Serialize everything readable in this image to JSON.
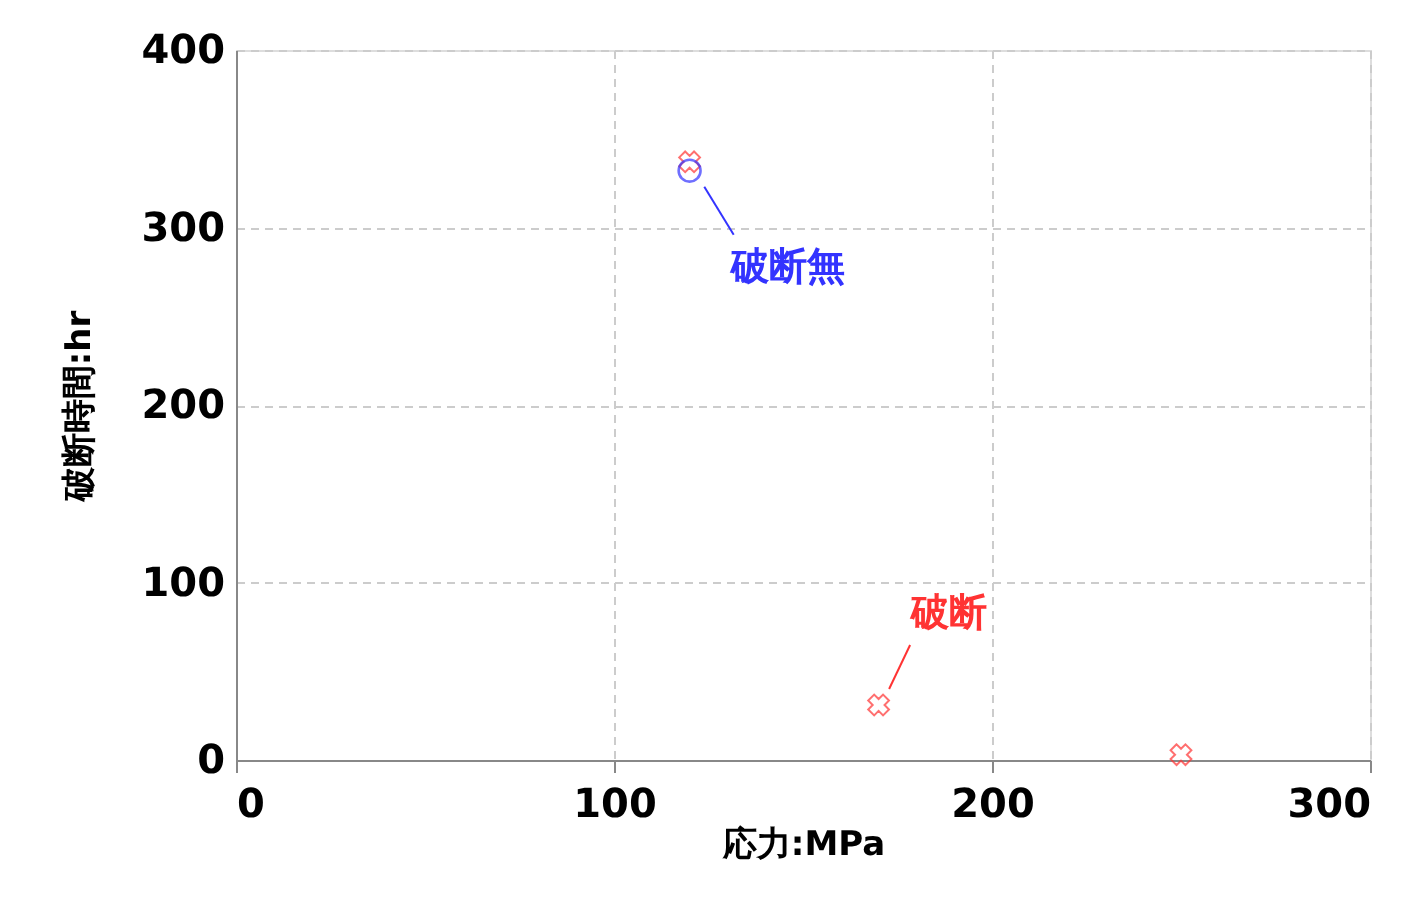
{
  "chart_data": {
    "type": "scatter",
    "xlabel": "応力:MPa",
    "ylabel": "破断時間:hr",
    "series": [
      {
        "color": "#ff3333",
        "marker": "cross",
        "x": [
          120,
          170,
          250
        ],
        "values": [
          337,
          31,
          3
        ]
      },
      {
        "color": "#3333ff",
        "marker": "circle",
        "x": [
          120
        ],
        "values": [
          332
        ]
      }
    ],
    "annotations": [
      {
        "text": "破断無",
        "x": 120,
        "y": 332
      },
      {
        "text": "破断",
        "x": 170,
        "y": 31
      }
    ],
    "xlim": [
      0,
      300
    ],
    "xticks": [
      0,
      100,
      200,
      300
    ],
    "ylim": [
      0,
      400
    ],
    "yticks": [
      0,
      100,
      200,
      300,
      400
    ],
    "grid": true
  }
}
